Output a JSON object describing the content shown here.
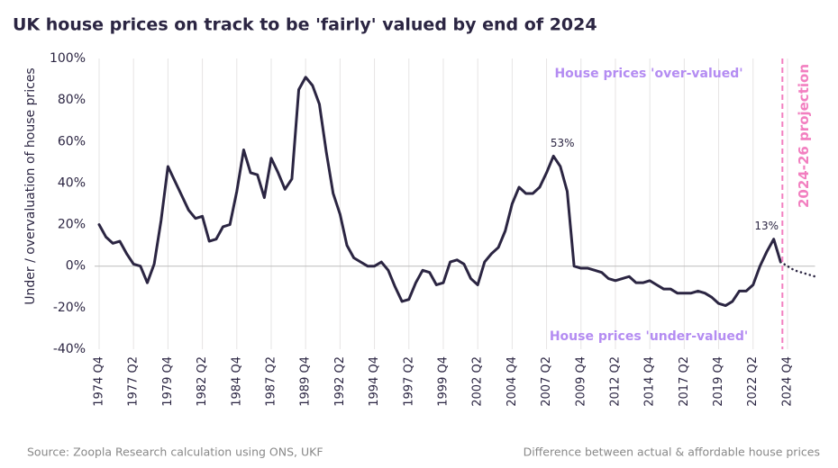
{
  "chart_data": {
    "type": "line",
    "title": "UK house prices on track to be 'fairly' valued by end of 2024",
    "y_label": "Under / overvaluation of house prices",
    "source": "Source: Zoopla Research calculation using ONS, UKF",
    "note": "Difference between actual & affordable house prices",
    "annotations": {
      "over": "House prices 'over-valued'",
      "under": "House prices 'under-valued'",
      "projection": "2024-26 projection"
    },
    "categories": [
      "1974 Q4",
      null,
      null,
      null,
      null,
      "1977 Q2",
      null,
      null,
      null,
      null,
      "1979 Q4",
      null,
      null,
      null,
      null,
      "1982 Q2",
      null,
      null,
      null,
      null,
      "1984 Q4",
      null,
      null,
      null,
      null,
      "1987 Q2",
      null,
      null,
      null,
      null,
      "1989 Q4",
      null,
      null,
      null,
      null,
      "1992 Q2",
      null,
      null,
      null,
      null,
      "1994 Q4",
      null,
      null,
      null,
      null,
      "1997 Q2",
      null,
      null,
      null,
      null,
      "1999 Q4",
      null,
      null,
      null,
      null,
      "2002 Q2",
      null,
      null,
      null,
      null,
      "2004 Q4",
      null,
      null,
      null,
      null,
      "2007 Q2",
      null,
      null,
      null,
      null,
      "2009 Q4",
      null,
      null,
      null,
      null,
      "2012 Q2",
      null,
      null,
      null,
      null,
      "2014 Q4",
      null,
      null,
      null,
      null,
      "2017 Q2",
      null,
      null,
      null,
      null,
      "2019 Q4",
      null,
      null,
      null,
      null,
      "2022 Q2",
      null,
      null,
      null,
      null,
      "2024 Q4",
      null,
      null,
      null,
      null
    ],
    "series": [
      {
        "color": "#2b2542",
        "dash": "solid",
        "values": [
          20,
          14,
          11,
          12,
          6,
          1,
          0,
          -8,
          1,
          22,
          48,
          41,
          34,
          27,
          23,
          24,
          12,
          13,
          19,
          20,
          36,
          56,
          45,
          44,
          33,
          52,
          45,
          37,
          42,
          85,
          91,
          87,
          78,
          55,
          35,
          25,
          10,
          4,
          2,
          0,
          0,
          2,
          -2,
          -10,
          -17,
          -16,
          -8,
          -2,
          -3,
          -9,
          -8,
          2,
          3,
          1,
          -6,
          -9,
          2,
          6,
          9,
          17,
          30,
          38,
          35,
          35,
          38,
          45,
          53,
          48,
          36,
          0,
          -1,
          -1,
          -2,
          -3,
          -6,
          -7,
          -6,
          -5,
          -8,
          -8,
          -7,
          -9,
          -11,
          -11,
          -13,
          -13,
          -13,
          -12,
          -13,
          -15,
          -18,
          -19,
          -17,
          -12,
          -12,
          -9,
          0,
          7,
          13,
          2,
          null,
          null,
          null,
          null,
          null
        ],
        "value_labels": [
          null,
          null,
          null,
          null,
          null,
          null,
          null,
          null,
          null,
          null,
          null,
          null,
          null,
          null,
          null,
          null,
          null,
          null,
          null,
          null,
          null,
          null,
          null,
          null,
          null,
          null,
          null,
          null,
          null,
          null,
          null,
          null,
          null,
          null,
          null,
          null,
          null,
          null,
          null,
          null,
          null,
          null,
          null,
          null,
          null,
          null,
          null,
          null,
          null,
          null,
          null,
          null,
          null,
          null,
          null,
          null,
          null,
          null,
          null,
          null,
          null,
          null,
          null,
          null,
          null,
          null,
          "53%",
          null,
          null,
          null,
          null,
          null,
          null,
          null,
          null,
          null,
          null,
          null,
          null,
          null,
          null,
          null,
          null,
          null,
          null,
          null,
          null,
          null,
          null,
          null,
          null,
          null,
          null,
          null,
          null,
          null,
          null,
          null,
          "13%",
          null,
          null,
          null,
          null,
          null,
          null
        ]
      },
      {
        "color": "#2b2542",
        "dash": "dotted",
        "values": [
          null,
          null,
          null,
          null,
          null,
          null,
          null,
          null,
          null,
          null,
          null,
          null,
          null,
          null,
          null,
          null,
          null,
          null,
          null,
          null,
          null,
          null,
          null,
          null,
          null,
          null,
          null,
          null,
          null,
          null,
          null,
          null,
          null,
          null,
          null,
          null,
          null,
          null,
          null,
          null,
          null,
          null,
          null,
          null,
          null,
          null,
          null,
          null,
          null,
          null,
          null,
          null,
          null,
          null,
          null,
          null,
          null,
          null,
          null,
          null,
          null,
          null,
          null,
          null,
          null,
          null,
          null,
          null,
          null,
          null,
          null,
          null,
          null,
          null,
          null,
          null,
          null,
          null,
          null,
          null,
          null,
          null,
          null,
          null,
          null,
          null,
          null,
          null,
          null,
          null,
          null,
          null,
          null,
          null,
          null,
          null,
          null,
          null,
          null,
          2,
          0,
          -2,
          -3,
          -4,
          -5
        ]
      }
    ],
    "ylim": [
      -40,
      100
    ],
    "yticks": [
      {
        "value": -40,
        "label": "-40%"
      },
      {
        "value": -20,
        "label": "-20%"
      },
      {
        "value": 0,
        "label": "0%"
      },
      {
        "value": 20,
        "label": "20%"
      },
      {
        "value": 40,
        "label": "40%"
      },
      {
        "value": 60,
        "label": "60%"
      },
      {
        "value": 80,
        "label": "80%"
      },
      {
        "value": 100,
        "label": "100%"
      }
    ],
    "grid": true,
    "projection_color": "#f27fc0",
    "annotation_color": "#b48cf2"
  }
}
